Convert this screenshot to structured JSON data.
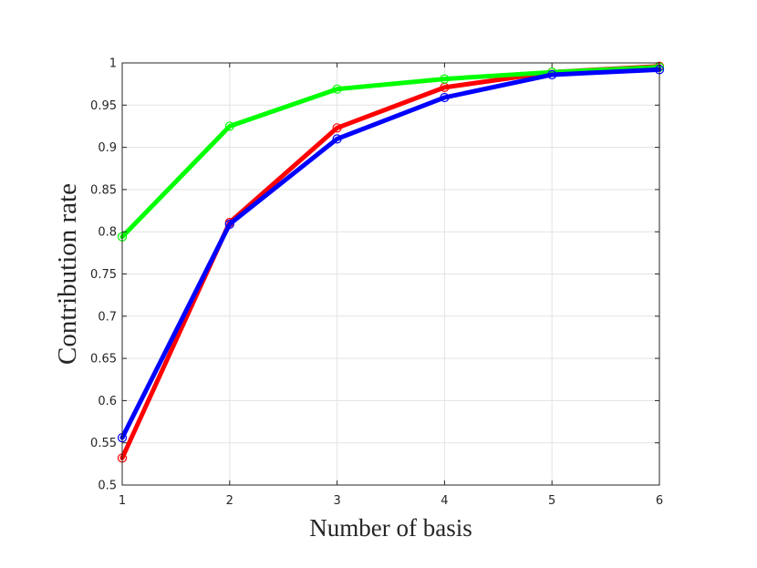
{
  "chart_data": {
    "type": "line",
    "title": "",
    "xlabel": "Number of basis",
    "ylabel": "Contribution rate",
    "x": [
      1,
      2,
      3,
      4,
      5,
      6
    ],
    "xlim": [
      1,
      6
    ],
    "ylim": [
      0.5,
      1
    ],
    "xticks": [
      "1",
      "2",
      "3",
      "4",
      "5",
      "6"
    ],
    "yticks": [
      "0.5",
      "0.55",
      "0.6",
      "0.65",
      "0.7",
      "0.75",
      "0.8",
      "0.85",
      "0.9",
      "0.95",
      "1"
    ],
    "grid": true,
    "markers": "circle",
    "series": [
      {
        "color": "#ff0000",
        "values": [
          0.532,
          0.811,
          0.923,
          0.971,
          0.989,
          0.996
        ]
      },
      {
        "color": "#00ff00",
        "values": [
          0.794,
          0.925,
          0.969,
          0.981,
          0.989,
          0.995
        ]
      },
      {
        "color": "#0000ff",
        "values": [
          0.556,
          0.809,
          0.91,
          0.959,
          0.986,
          0.992
        ]
      }
    ]
  }
}
